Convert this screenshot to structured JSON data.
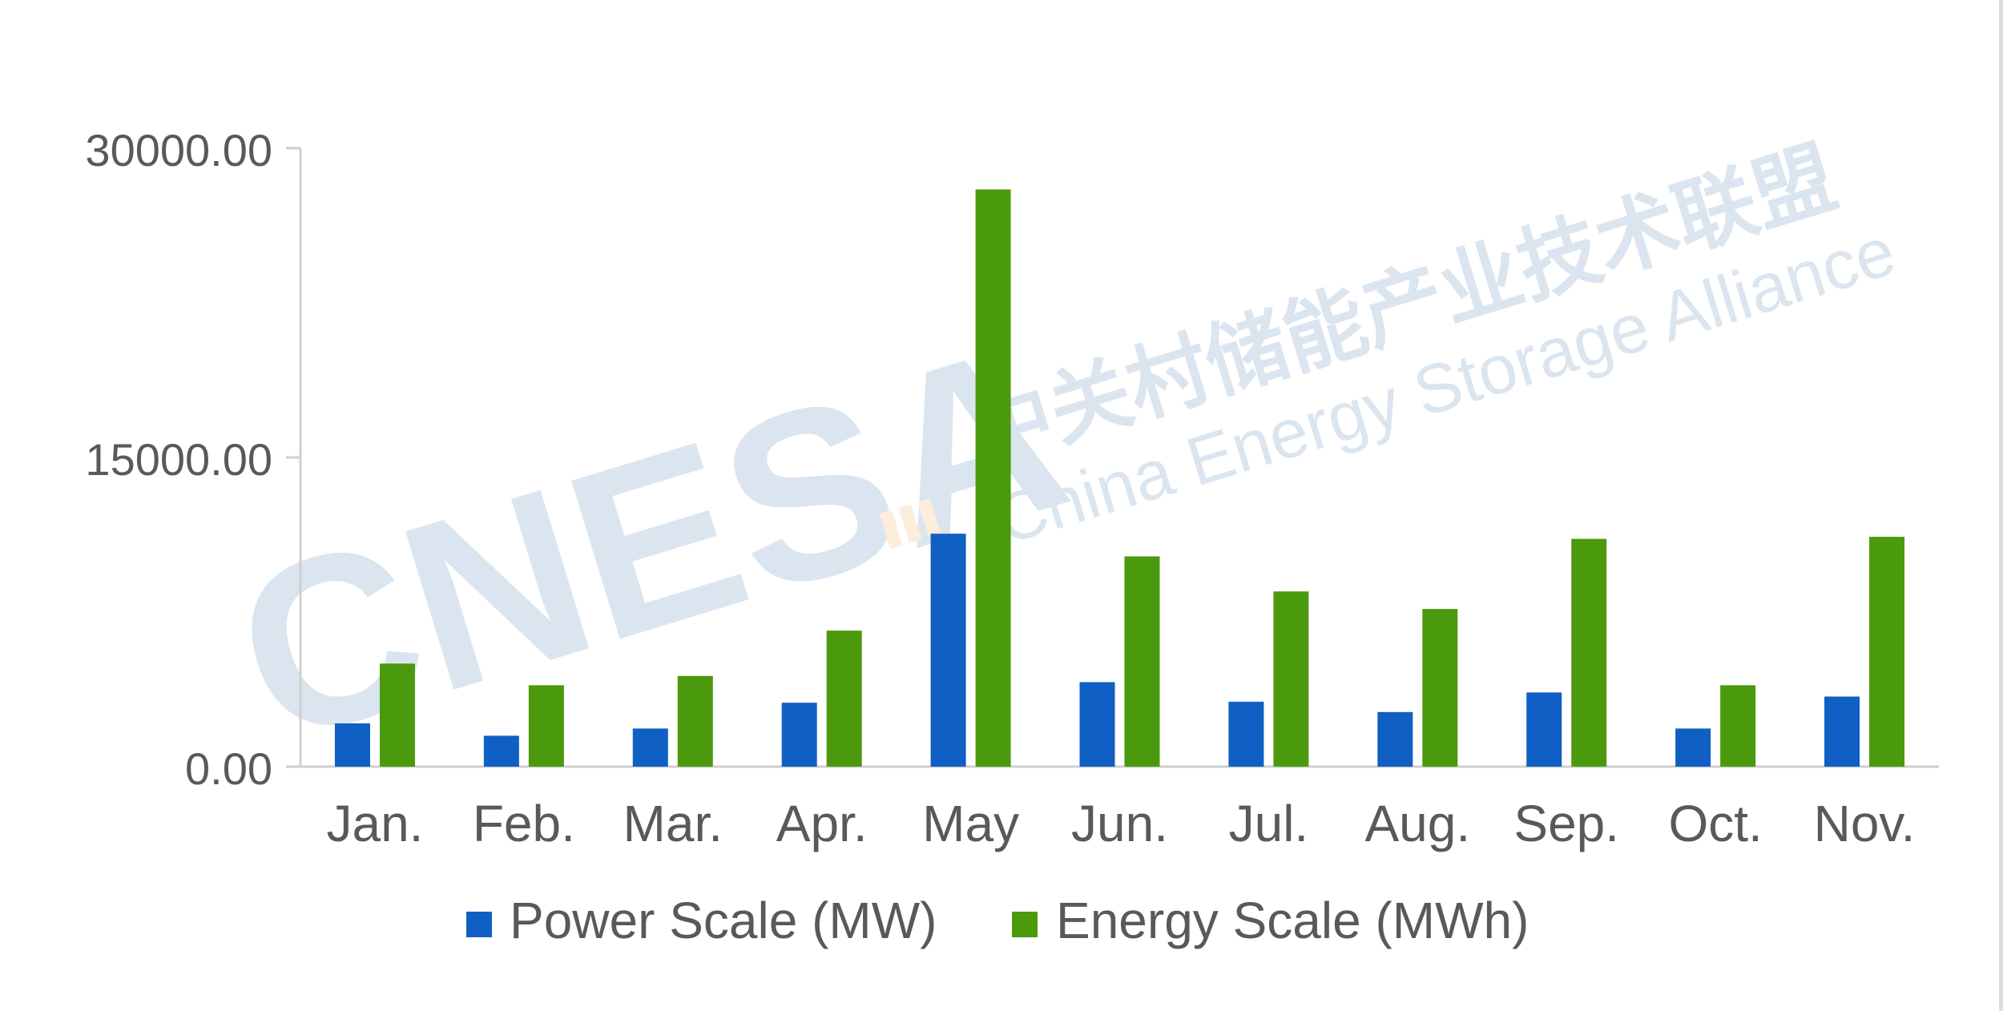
{
  "chart_data": {
    "type": "bar",
    "categories": [
      "Jan.",
      "Feb.",
      "Mar.",
      "Apr.",
      "May",
      "Jun.",
      "Jul.",
      "Aug.",
      "Sep.",
      "Oct.",
      "Nov."
    ],
    "series": [
      {
        "name": "Power Scale (MW)",
        "color": "#0f5fc4",
        "values": [
          2100,
          1500,
          1850,
          3100,
          11300,
          4100,
          3150,
          2650,
          3600,
          1850,
          3400
        ]
      },
      {
        "name": "Energy Scale (MWh)",
        "color": "#4b9a0e",
        "values": [
          5000,
          3950,
          4400,
          6600,
          28000,
          10200,
          8500,
          7650,
          11050,
          3950,
          11150
        ]
      }
    ],
    "y_ticks": [
      "0.00",
      "15000.00",
      "30000.00"
    ],
    "ylim": [
      0,
      30000
    ],
    "grid": false,
    "legend_position": "bottom-center"
  },
  "watermark": {
    "logo_text": "CNESA",
    "chinese_name": "中关村储能产业技术联盟",
    "english_name": "China Energy Storage Alliance"
  }
}
